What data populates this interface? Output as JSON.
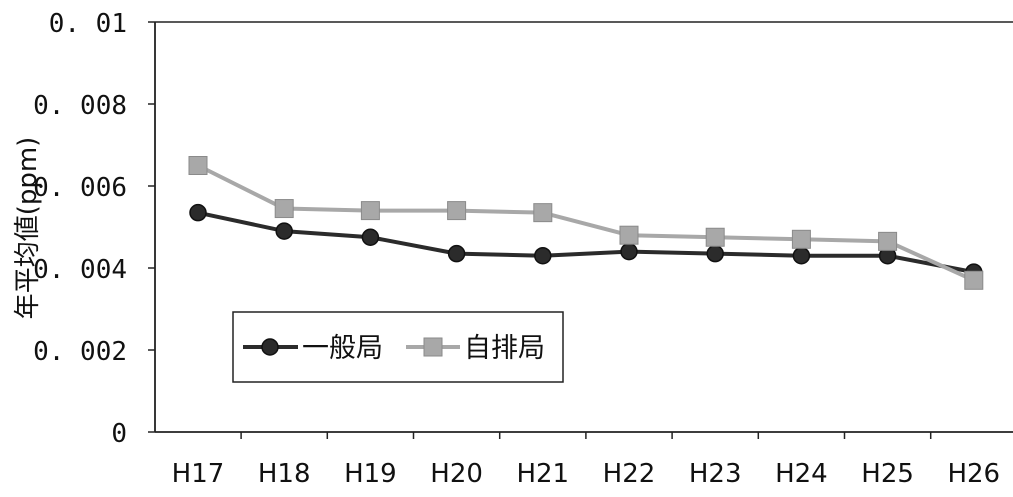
{
  "chart_data": {
    "type": "line",
    "categories": [
      "H17",
      "H18",
      "H19",
      "H20",
      "H21",
      "H22",
      "H23",
      "H24",
      "H25",
      "H26"
    ],
    "series": [
      {
        "name": "一般局",
        "values": [
          0.00535,
          0.0049,
          0.00475,
          0.00435,
          0.0043,
          0.0044,
          0.00435,
          0.0043,
          0.0043,
          0.0039
        ],
        "color": "#2b2b2b",
        "marker": "circle"
      },
      {
        "name": "自排局",
        "values": [
          0.0065,
          0.00545,
          0.0054,
          0.0054,
          0.00535,
          0.0048,
          0.00475,
          0.0047,
          0.00465,
          0.0037
        ],
        "color": "#a8a8a8",
        "marker": "square"
      }
    ],
    "ylabel": "年平均値(ppm)",
    "xlabel": "",
    "title": "",
    "ylim": [
      0,
      0.01
    ],
    "yticks": [
      "0",
      "0.002",
      "0.004",
      "0.006",
      "0.008",
      "0.01"
    ],
    "yticks_display": [
      "0",
      "0. 002",
      "0. 004",
      "0. 006",
      "0. 008",
      "0. 01"
    ],
    "grid": false,
    "legend_position": "bottom-left"
  }
}
